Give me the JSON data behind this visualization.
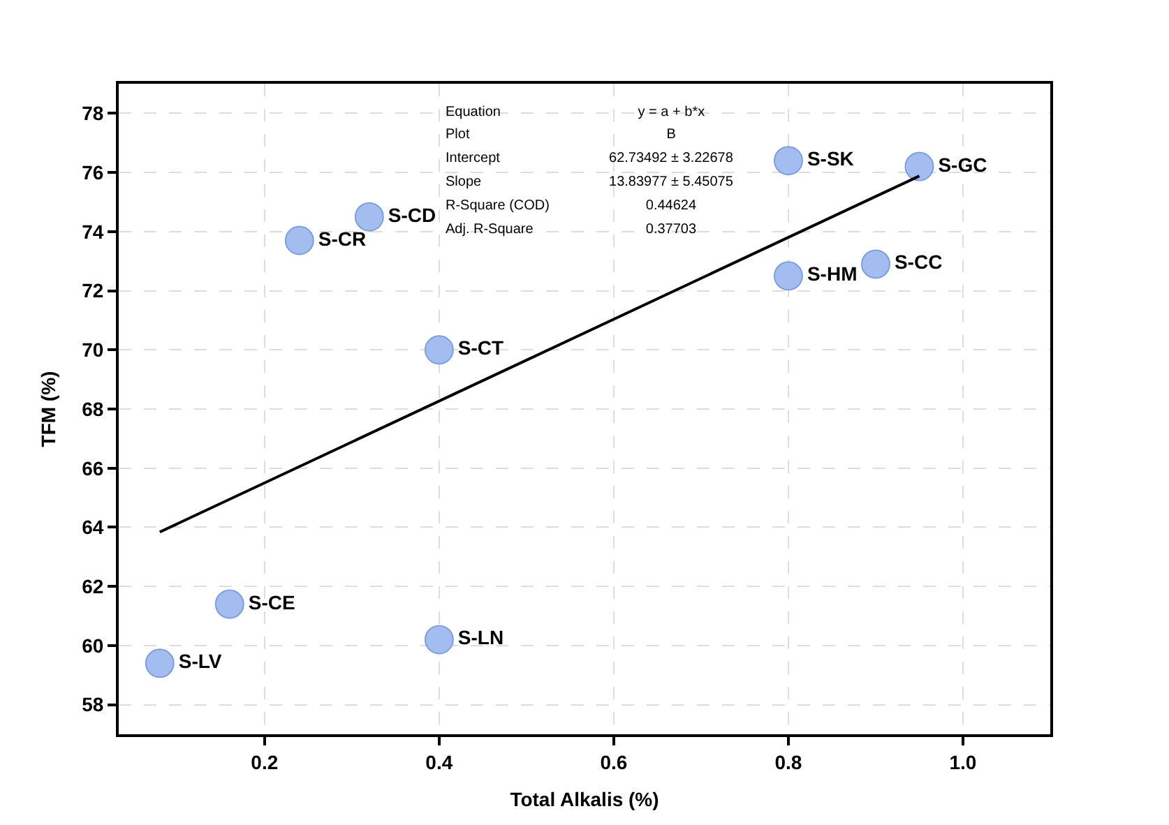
{
  "chart_data": {
    "type": "scatter",
    "xlabel": "Total Alkalis (%)",
    "ylabel": "TFM (%)",
    "xlim": [
      0.033,
      1.1
    ],
    "ylim": [
      57,
      79
    ],
    "xticks": [
      0.2,
      0.4,
      0.6,
      0.8,
      {
        "value": 1.0,
        "label": "1.0"
      }
    ],
    "yticks": [
      58,
      60,
      62,
      64,
      66,
      68,
      70,
      72,
      74,
      76,
      78
    ],
    "grid": true,
    "marker": "circle",
    "legend": false,
    "series": [
      {
        "name": "S-LV",
        "color": "#a4bdf0",
        "x": [
          0.08
        ],
        "values": [
          59.4
        ]
      },
      {
        "name": "S-CE",
        "color": "#a4bdf0",
        "x": [
          0.16
        ],
        "values": [
          61.4
        ]
      },
      {
        "name": "S-CR",
        "color": "#a4bdf0",
        "x": [
          0.24
        ],
        "values": [
          73.7
        ]
      },
      {
        "name": "S-CD",
        "color": "#a4bdf0",
        "x": [
          0.32
        ],
        "values": [
          74.5
        ]
      },
      {
        "name": "S-CT",
        "color": "#a4bdf0",
        "x": [
          0.4
        ],
        "values": [
          70.0
        ]
      },
      {
        "name": "S-LN",
        "color": "#a4bdf0",
        "x": [
          0.4
        ],
        "values": [
          60.2
        ]
      },
      {
        "name": "S-SK",
        "color": "#a4bdf0",
        "x": [
          0.8
        ],
        "values": [
          76.4
        ]
      },
      {
        "name": "S-HM",
        "color": "#a4bdf0",
        "x": [
          0.8
        ],
        "values": [
          72.5
        ]
      },
      {
        "name": "S-CC",
        "color": "#a4bdf0",
        "x": [
          0.9
        ],
        "values": [
          72.9
        ]
      },
      {
        "name": "S-GC",
        "color": "#a4bdf0",
        "x": [
          0.95
        ],
        "values": [
          76.2
        ]
      },
      {
        "type": "line",
        "color": "#000000",
        "x": [
          0.08,
          0.95
        ],
        "values": [
          63.84,
          75.88
        ],
        "marker": "none",
        "line_style": "solid"
      }
    ],
    "annotations": [
      "Equation",
      "y = a + b*x",
      "Plot",
      "B",
      "Intercept",
      "62.73492 ± 3.22678",
      "Slope",
      "13.83977 ± 5.45075",
      "R-Square (COD)",
      "0.44624",
      "Adj. R-Square",
      "0.37703"
    ]
  }
}
